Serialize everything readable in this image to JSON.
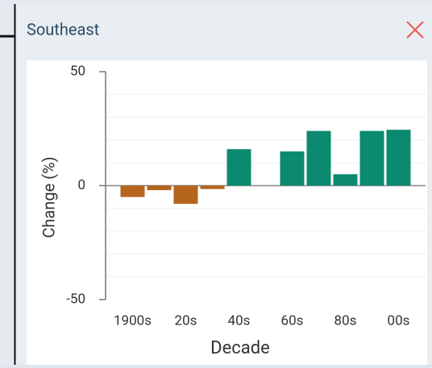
{
  "header": {
    "title": "Southeast"
  },
  "chart_data": {
    "type": "bar",
    "x_label": "Decade",
    "y_label": "Change (%)",
    "categories": [
      "1900s",
      null,
      "20s",
      null,
      "40s",
      null,
      "60s",
      null,
      "80s",
      null,
      "00s"
    ],
    "values": [
      -5,
      -2,
      -8,
      -1.5,
      16,
      null,
      15,
      24,
      5,
      24,
      24.5
    ],
    "color_positive": "#0b8a6f",
    "color_negative": "#b5651d",
    "ylim": [
      -50,
      50
    ],
    "yticks": [
      -50,
      0,
      50
    ],
    "minor_yticks": [
      -40,
      -30,
      -20,
      -10,
      10,
      20,
      30,
      40
    ],
    "grid": true
  }
}
